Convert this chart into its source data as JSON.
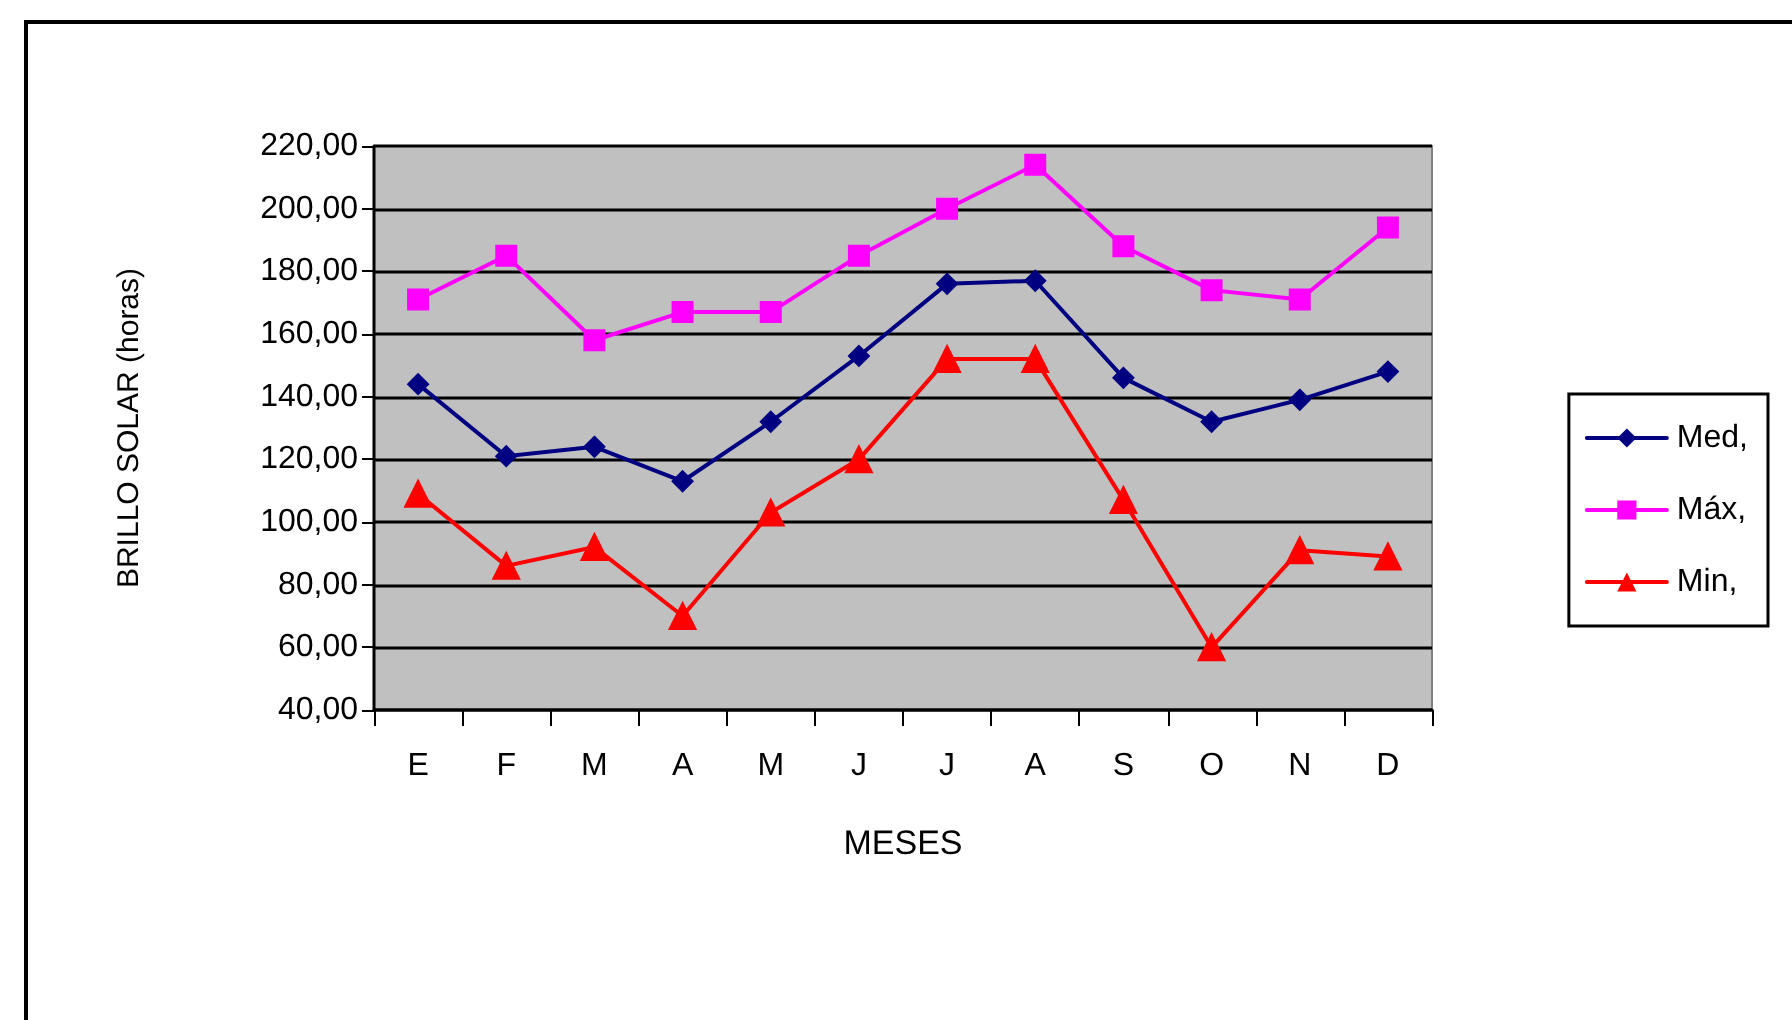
{
  "chart_data": {
    "type": "line",
    "xlabel": "MESES",
    "ylabel": "BRILLO SOLAR (horas)",
    "categories": [
      "E",
      "F",
      "M",
      "A",
      "M",
      "J",
      "J",
      "A",
      "S",
      "O",
      "N",
      "D"
    ],
    "series": [
      {
        "name": "Med,",
        "color": "#000080",
        "marker": "diamond",
        "values": [
          144,
          121,
          124,
          113,
          132,
          153,
          176,
          177,
          146,
          132,
          139,
          148
        ]
      },
      {
        "name": "Máx,",
        "color": "#ff00ff",
        "marker": "square",
        "values": [
          171,
          185,
          158,
          167,
          167,
          185,
          200,
          214,
          188,
          174,
          171,
          194
        ]
      },
      {
        "name": "Min,",
        "color": "#ff0000",
        "marker": "triangle",
        "values": [
          109,
          86,
          92,
          70,
          103,
          120,
          152,
          152,
          107,
          60,
          91,
          89
        ]
      }
    ],
    "ylim": [
      40,
      220
    ],
    "yticks": [
      {
        "value": 40,
        "label": "40,00"
      },
      {
        "value": 60,
        "label": "60,00"
      },
      {
        "value": 80,
        "label": "80,00"
      },
      {
        "value": 100,
        "label": "100,00"
      },
      {
        "value": 120,
        "label": "120,00"
      },
      {
        "value": 140,
        "label": "140,00"
      },
      {
        "value": 160,
        "label": "160,00"
      },
      {
        "value": 180,
        "label": "180,00"
      },
      {
        "value": 200,
        "label": "200,00"
      },
      {
        "value": 220,
        "label": "220,00"
      }
    ],
    "grid": "y",
    "legend": "right",
    "line_style": "solid"
  }
}
